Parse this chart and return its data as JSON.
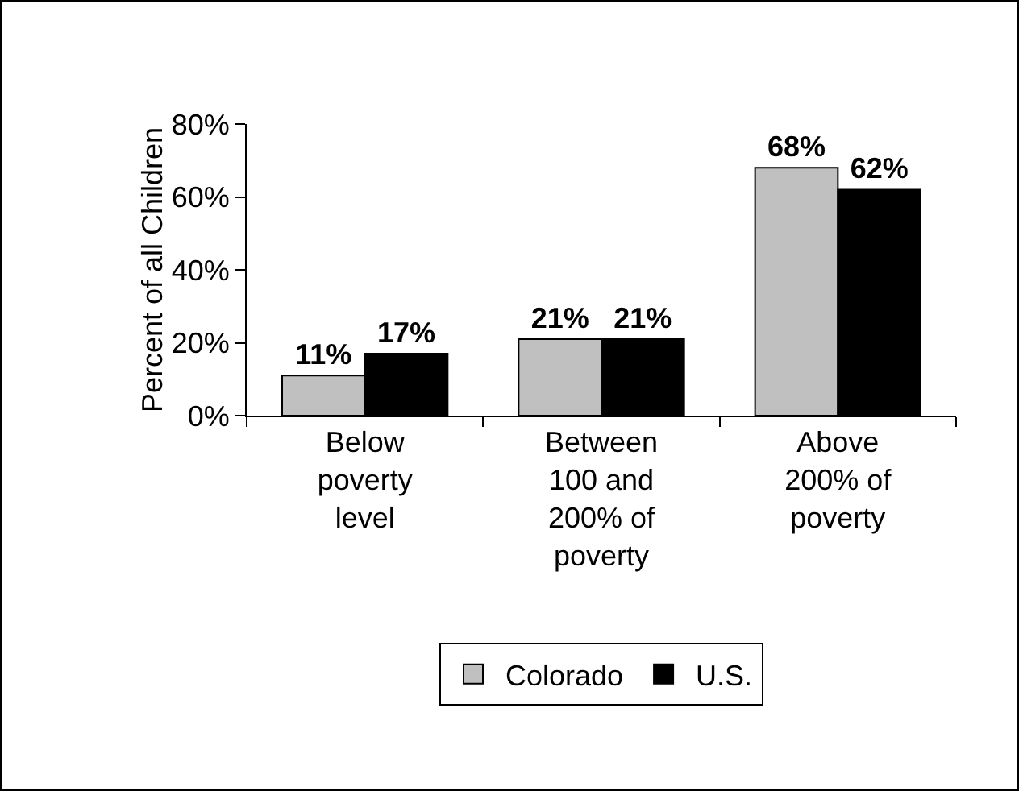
{
  "chart_data": {
    "type": "bar",
    "ylabel": "Percent of all Children",
    "categories": [
      "Below poverty level",
      "Between 100 and 200% of poverty",
      "Above 200% of poverty"
    ],
    "series": [
      {
        "name": "Colorado",
        "color": "#c0c0c0",
        "values": [
          11,
          21,
          68
        ],
        "value_labels": [
          "11%",
          "21%",
          "68%"
        ]
      },
      {
        "name": "U.S.",
        "color": "#000000",
        "values": [
          17,
          21,
          62
        ],
        "value_labels": [
          "17%",
          "21%",
          "62%"
        ]
      }
    ],
    "ylim": [
      0,
      80
    ],
    "yticks": [
      {
        "value": 0,
        "label": "0%"
      },
      {
        "value": 20,
        "label": "20%"
      },
      {
        "value": 40,
        "label": "40%"
      },
      {
        "value": 60,
        "label": "60%"
      },
      {
        "value": 80,
        "label": "80%"
      }
    ],
    "grid": false,
    "legend": "bottom"
  }
}
